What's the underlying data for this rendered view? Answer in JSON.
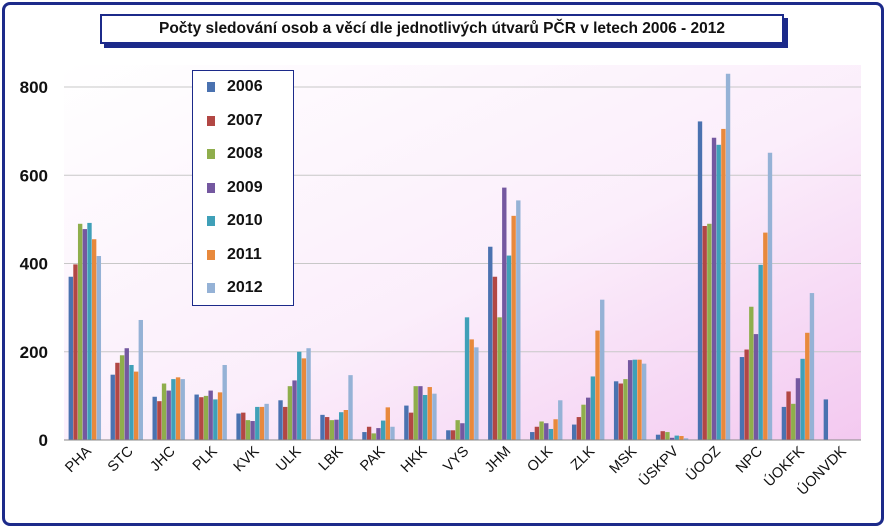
{
  "chart_data": {
    "type": "bar",
    "title": "Počty sledování osob a věcí dle jednotlivých útvarů PČR v letech 2006 - 2012",
    "xlabel": "",
    "ylabel": "",
    "ylim": [
      0,
      850
    ],
    "yticks": [
      0,
      200,
      400,
      600,
      800
    ],
    "grid": true,
    "legend_position": "top-left",
    "categories": [
      "PHA",
      "STC",
      "JHC",
      "PLK",
      "KVK",
      "ULK",
      "LBK",
      "PAK",
      "HKK",
      "VYS",
      "JHM",
      "OLK",
      "ZLK",
      "MSK",
      "ÚSKPV",
      "ÚOOZ",
      "NPC",
      "ÚOKFK",
      "ÚONVDK"
    ],
    "series": [
      {
        "name": "2006",
        "color": "#4a72b0",
        "values": [
          370,
          148,
          98,
          103,
          60,
          90,
          57,
          18,
          78,
          22,
          438,
          18,
          35,
          133,
          12,
          722,
          188,
          75,
          92
        ]
      },
      {
        "name": "2007",
        "color": "#b24744",
        "values": [
          398,
          175,
          88,
          97,
          62,
          75,
          52,
          30,
          62,
          22,
          370,
          30,
          52,
          128,
          20,
          485,
          205,
          110,
          0
        ]
      },
      {
        "name": "2008",
        "color": "#8fae4c",
        "values": [
          490,
          192,
          128,
          100,
          45,
          122,
          45,
          15,
          122,
          45,
          278,
          42,
          80,
          138,
          18,
          490,
          302,
          82,
          0
        ]
      },
      {
        "name": "2009",
        "color": "#7458a0",
        "values": [
          478,
          208,
          112,
          112,
          43,
          135,
          46,
          27,
          122,
          38,
          572,
          38,
          96,
          181,
          5,
          685,
          240,
          140,
          0
        ]
      },
      {
        "name": "2010",
        "color": "#3fa0b8",
        "values": [
          492,
          170,
          138,
          92,
          75,
          200,
          63,
          44,
          102,
          278,
          418,
          25,
          144,
          182,
          10,
          669,
          397,
          184,
          0
        ]
      },
      {
        "name": "2011",
        "color": "#e8893c",
        "values": [
          455,
          155,
          142,
          108,
          75,
          185,
          68,
          74,
          120,
          228,
          508,
          47,
          248,
          182,
          9,
          705,
          470,
          243,
          0
        ]
      },
      {
        "name": "2012",
        "color": "#95b2d6",
        "values": [
          417,
          272,
          138,
          170,
          82,
          208,
          147,
          30,
          105,
          210,
          543,
          90,
          318,
          173,
          4,
          830,
          651,
          333,
          0
        ]
      }
    ]
  }
}
